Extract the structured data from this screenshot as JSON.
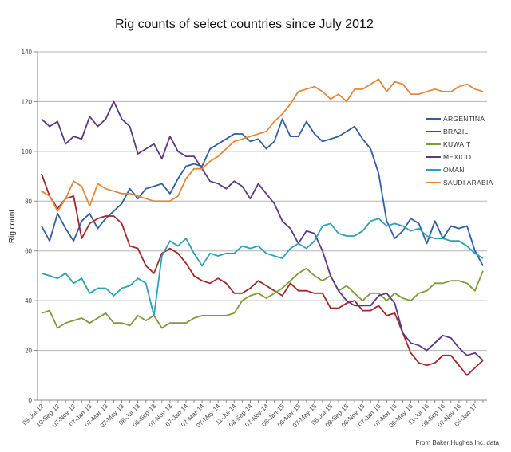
{
  "chart_data": {
    "type": "line",
    "title": "Rig counts of select countries since July 2012",
    "xlabel": "",
    "ylabel": "Rig count",
    "ylim": [
      0,
      140
    ],
    "yticks": [
      0,
      20,
      40,
      60,
      80,
      100,
      120,
      140
    ],
    "grid": true,
    "legend_position": "right",
    "x_tick_labels": [
      "09-Jul-12",
      "10-Sep-12",
      "07-Nov-12",
      "07-Jan-13",
      "07-Mar-13",
      "07-May-13",
      "08-Jul-13",
      "06-Sep-13",
      "07-Nov-13",
      "07-Jan-14",
      "07-Mar-14",
      "07-May-14",
      "11-Jul-14",
      "08-Sep-14",
      "07-Nov-14",
      "08-Jan-15",
      "06-Mar-15",
      "07-May-15",
      "08-Jul-15",
      "08-Sep-15",
      "06-Nov-15",
      "07-Jan-16",
      "07-Mar-16",
      "06-May-16",
      "11-Jul-16",
      "08-Sep-16",
      "07-Nov-16",
      "06-Jan-17"
    ],
    "series": [
      {
        "name": "ARGENTINA",
        "color": "#2f5f9e",
        "values": [
          70,
          64,
          75,
          69,
          64,
          72,
          75,
          69,
          73,
          76,
          79,
          85,
          81,
          85,
          86,
          87,
          83,
          89,
          94,
          95,
          94,
          101,
          103,
          105,
          107,
          107,
          104,
          105,
          101,
          104,
          113,
          106,
          106,
          112,
          107,
          104,
          105,
          106,
          108,
          110,
          105,
          101,
          91,
          72,
          65,
          68,
          73,
          71,
          63,
          72,
          65,
          70,
          69,
          70,
          60,
          54
        ]
      },
      {
        "name": "BRAZIL",
        "color": "#a0282a",
        "values": [
          91,
          82,
          77,
          81,
          82,
          65,
          71,
          73,
          74,
          74,
          71,
          62,
          61,
          54,
          51,
          59,
          61,
          59,
          55,
          50,
          48,
          47,
          49,
          47,
          43,
          43,
          45,
          48,
          46,
          44,
          42,
          47,
          44,
          44,
          43,
          43,
          37,
          37,
          39,
          40,
          36,
          36,
          38,
          34,
          35,
          27,
          19,
          15,
          14,
          15,
          18,
          18,
          14,
          10,
          13,
          16
        ]
      },
      {
        "name": "KUWAIT",
        "color": "#7c9b3a",
        "values": [
          35,
          36,
          29,
          31,
          32,
          33,
          31,
          33,
          35,
          31,
          31,
          30,
          34,
          32,
          34,
          29,
          31,
          31,
          31,
          33,
          34,
          34,
          34,
          34,
          35,
          40,
          42,
          43,
          41,
          43,
          45,
          48,
          51,
          53,
          50,
          48,
          50,
          44,
          46,
          43,
          40,
          43,
          43,
          40,
          43,
          41,
          40,
          43,
          44,
          47,
          47,
          48,
          48,
          47,
          44,
          52
        ]
      },
      {
        "name": "MEXICO",
        "color": "#5a3a82",
        "values": [
          113,
          110,
          112,
          103,
          106,
          105,
          114,
          110,
          113,
          120,
          113,
          110,
          99,
          101,
          103,
          97,
          106,
          100,
          98,
          98,
          93,
          88,
          87,
          85,
          88,
          86,
          81,
          87,
          83,
          79,
          72,
          69,
          63,
          68,
          67,
          60,
          50,
          44,
          40,
          38,
          38,
          38,
          42,
          43,
          39,
          27,
          23,
          22,
          20,
          23,
          26,
          25,
          21,
          18,
          19,
          16
        ]
      },
      {
        "name": "OMAN",
        "color": "#2e9fb8",
        "values": [
          51,
          50,
          49,
          51,
          47,
          49,
          43,
          45,
          45,
          42,
          45,
          46,
          49,
          47,
          34,
          58,
          64,
          62,
          65,
          59,
          54,
          59,
          58,
          59,
          59,
          62,
          61,
          62,
          59,
          58,
          57,
          61,
          63,
          61,
          64,
          70,
          71,
          67,
          66,
          66,
          68,
          72,
          73,
          70,
          71,
          70,
          68,
          69,
          66,
          65,
          65,
          64,
          64,
          62,
          59,
          57
        ]
      },
      {
        "name": "SAUDI ARABIA",
        "color": "#e3893a",
        "values": [
          84,
          82,
          76,
          81,
          88,
          86,
          78,
          87,
          85,
          84,
          83,
          83,
          82,
          81,
          80,
          80,
          80,
          82,
          89,
          93,
          93,
          96,
          98,
          101,
          104,
          105,
          106,
          107,
          108,
          112,
          115,
          119,
          124,
          125,
          126,
          124,
          121,
          123,
          120,
          125,
          125,
          127,
          129,
          124,
          128,
          127,
          123,
          123,
          124,
          125,
          124,
          124,
          126,
          127,
          125,
          124
        ]
      }
    ],
    "source_note": "From Baker Hughes Inc. data"
  }
}
